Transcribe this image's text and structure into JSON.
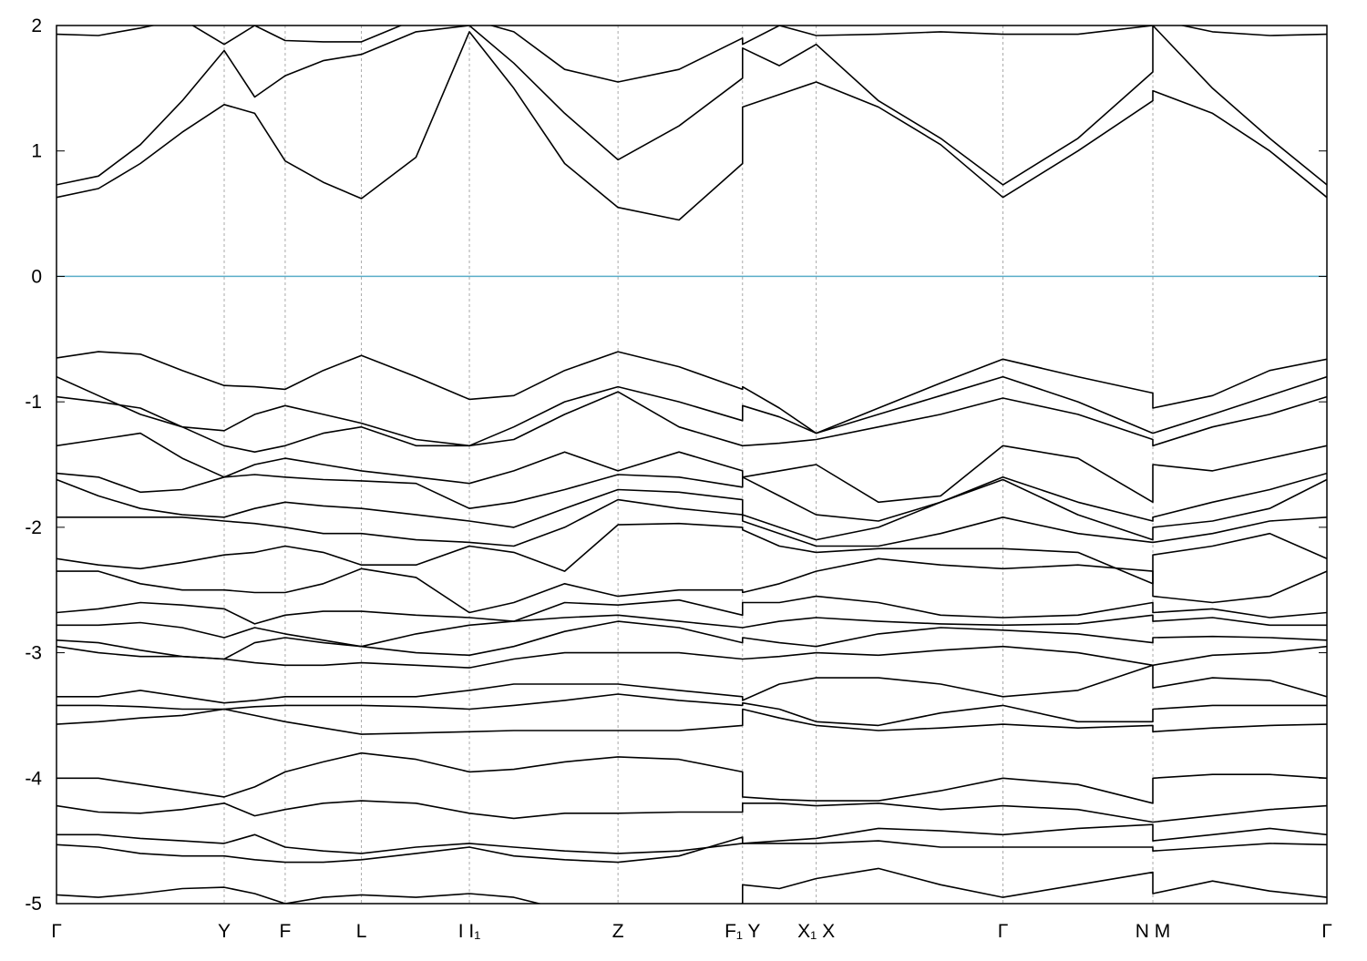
{
  "chart_data": {
    "type": "line",
    "xlim": [
      0,
      1
    ],
    "ylim": [
      -5,
      2
    ],
    "yticks": [
      -5,
      -4,
      -3,
      -2,
      -1,
      0,
      1,
      2
    ],
    "xticks": [
      {
        "value": 0,
        "label": "Γ"
      },
      {
        "value": 0.132,
        "label": "Y"
      },
      {
        "value": 0.18,
        "label": "F"
      },
      {
        "value": 0.24,
        "label": "L"
      },
      {
        "value": 0.325,
        "label": "I I₁"
      },
      {
        "value": 0.442,
        "label": "Z"
      },
      {
        "value": 0.54,
        "label": "F₁ Y"
      },
      {
        "value": 0.598,
        "label": "X₁ X"
      },
      {
        "value": 0.745,
        "label": "Γ"
      },
      {
        "value": 0.863,
        "label": "N M"
      },
      {
        "value": 1,
        "label": "Γ"
      }
    ],
    "grid": true,
    "color": "#000000",
    "fermi_level": 0,
    "fermi_color": "#5aadc8",
    "x": [
      0,
      0.033,
      0.066,
      0.099,
      0.132,
      0.156,
      0.18,
      0.21,
      0.24,
      0.283,
      0.325,
      0.36,
      0.4,
      0.442,
      0.49,
      0.54,
      0.54,
      0.569,
      0.598,
      0.647,
      0.696,
      0.745,
      0.804,
      0.863,
      0.863,
      0.91,
      0.955,
      1.0
    ],
    "series": [
      {
        "values": [
          0.63,
          0.7,
          0.9,
          1.15,
          1.37,
          1.3,
          0.92,
          0.75,
          0.62,
          0.95,
          1.95,
          1.5,
          0.9,
          0.55,
          0.45,
          0.9,
          1.35,
          1.45,
          1.55,
          1.35,
          1.05,
          0.63,
          1.0,
          1.4,
          1.48,
          1.3,
          1.0,
          0.63
        ]
      },
      {
        "values": [
          0.73,
          0.8,
          1.05,
          1.4,
          1.8,
          1.43,
          1.6,
          1.72,
          1.77,
          1.95,
          2.0,
          1.7,
          1.3,
          0.93,
          1.2,
          1.58,
          1.82,
          1.68,
          1.85,
          1.4,
          1.1,
          0.73,
          1.1,
          1.63,
          2.0,
          1.5,
          1.1,
          0.73
        ]
      },
      {
        "values": [
          1.93,
          1.92,
          1.98,
          2.05,
          1.85,
          2.0,
          1.88,
          1.87,
          1.87,
          2.05,
          2.05,
          1.95,
          1.65,
          1.55,
          1.65,
          1.9,
          1.85,
          2.0,
          1.92,
          1.93,
          1.95,
          1.93,
          1.93,
          2.0,
          2.05,
          1.95,
          1.92,
          1.93
        ]
      },
      {
        "values": [
          -0.65,
          -0.6,
          -0.62,
          -0.75,
          -0.87,
          -0.88,
          -0.9,
          -0.75,
          -0.63,
          -0.8,
          -0.98,
          -0.95,
          -0.75,
          -0.6,
          -0.72,
          -0.9,
          -0.88,
          -1.05,
          -1.25,
          -1.05,
          -0.85,
          -0.66,
          -0.8,
          -0.93,
          -1.05,
          -0.95,
          -0.75,
          -0.66
        ]
      },
      {
        "values": [
          -0.8,
          -0.95,
          -1.1,
          -1.2,
          -1.23,
          -1.1,
          -1.03,
          -1.1,
          -1.17,
          -1.3,
          -1.35,
          -1.2,
          -1.0,
          -0.88,
          -1.0,
          -1.15,
          -1.03,
          -1.12,
          -1.25,
          -1.1,
          -0.95,
          -0.8,
          -1.0,
          -1.25,
          -1.25,
          -1.1,
          -0.95,
          -0.8
        ]
      },
      {
        "values": [
          -0.96,
          -1.0,
          -1.05,
          -1.2,
          -1.35,
          -1.4,
          -1.35,
          -1.25,
          -1.2,
          -1.35,
          -1.35,
          -1.3,
          -1.1,
          -0.92,
          -1.2,
          -1.35,
          -1.35,
          -1.33,
          -1.3,
          -1.2,
          -1.1,
          -0.97,
          -1.1,
          -1.3,
          -1.35,
          -1.2,
          -1.1,
          -0.96
        ]
      },
      {
        "values": [
          -1.35,
          -1.3,
          -1.25,
          -1.45,
          -1.6,
          -1.5,
          -1.45,
          -1.5,
          -1.55,
          -1.6,
          -1.65,
          -1.55,
          -1.4,
          -1.55,
          -1.4,
          -1.55,
          -1.6,
          -1.55,
          -1.5,
          -1.8,
          -1.75,
          -1.35,
          -1.45,
          -1.8,
          -1.5,
          -1.55,
          -1.45,
          -1.35
        ]
      },
      {
        "values": [
          -1.57,
          -1.6,
          -1.72,
          -1.7,
          -1.6,
          -1.58,
          -1.6,
          -1.62,
          -1.63,
          -1.65,
          -1.85,
          -1.8,
          -1.7,
          -1.58,
          -1.6,
          -1.68,
          -1.6,
          -1.75,
          -1.9,
          -1.95,
          -1.8,
          -1.6,
          -1.8,
          -1.95,
          -1.92,
          -1.8,
          -1.7,
          -1.57
        ]
      },
      {
        "values": [
          -1.62,
          -1.75,
          -1.85,
          -1.9,
          -1.92,
          -1.85,
          -1.8,
          -1.83,
          -1.85,
          -1.9,
          -1.95,
          -2.0,
          -1.85,
          -1.7,
          -1.72,
          -1.78,
          -1.9,
          -2.0,
          -2.1,
          -2.0,
          -1.8,
          -1.62,
          -1.9,
          -2.1,
          -2.0,
          -1.95,
          -1.85,
          -1.62
        ]
      },
      {
        "values": [
          -1.92,
          -1.92,
          -1.92,
          -1.92,
          -1.95,
          -1.97,
          -2.0,
          -2.05,
          -2.05,
          -2.1,
          -2.12,
          -2.15,
          -2.0,
          -1.78,
          -1.85,
          -1.9,
          -1.95,
          -2.05,
          -2.15,
          -2.15,
          -2.05,
          -1.92,
          -2.05,
          -2.12,
          -2.12,
          -2.05,
          -1.95,
          -1.92
        ]
      },
      {
        "values": [
          -2.25,
          -2.3,
          -2.33,
          -2.28,
          -2.22,
          -2.2,
          -2.15,
          -2.2,
          -2.3,
          -2.3,
          -2.15,
          -2.2,
          -2.35,
          -1.98,
          -1.97,
          -2.0,
          -2.02,
          -2.15,
          -2.2,
          -2.17,
          -2.17,
          -2.17,
          -2.2,
          -2.45,
          -2.22,
          -2.15,
          -2.05,
          -2.25
        ]
      },
      {
        "values": [
          -2.35,
          -2.35,
          -2.45,
          -2.5,
          -2.5,
          -2.52,
          -2.52,
          -2.45,
          -2.33,
          -2.4,
          -2.68,
          -2.6,
          -2.45,
          -2.55,
          -2.5,
          -2.5,
          -2.52,
          -2.45,
          -2.35,
          -2.25,
          -2.3,
          -2.33,
          -2.3,
          -2.35,
          -2.55,
          -2.6,
          -2.55,
          -2.35
        ]
      },
      {
        "values": [
          -2.68,
          -2.65,
          -2.6,
          -2.62,
          -2.65,
          -2.77,
          -2.7,
          -2.67,
          -2.67,
          -2.7,
          -2.72,
          -2.75,
          -2.6,
          -2.62,
          -2.58,
          -2.7,
          -2.6,
          -2.6,
          -2.55,
          -2.6,
          -2.7,
          -2.72,
          -2.7,
          -2.6,
          -2.68,
          -2.65,
          -2.72,
          -2.68
        ]
      },
      {
        "values": [
          -2.78,
          -2.78,
          -2.76,
          -2.8,
          -2.88,
          -2.8,
          -2.85,
          -2.9,
          -2.95,
          -2.85,
          -2.78,
          -2.75,
          -2.72,
          -2.7,
          -2.75,
          -2.8,
          -2.8,
          -2.75,
          -2.72,
          -2.75,
          -2.77,
          -2.78,
          -2.77,
          -2.7,
          -2.75,
          -2.72,
          -2.78,
          -2.78
        ]
      },
      {
        "values": [
          -2.9,
          -2.92,
          -2.98,
          -3.03,
          -3.05,
          -2.92,
          -2.88,
          -2.92,
          -2.95,
          -3.0,
          -3.02,
          -2.95,
          -2.83,
          -2.75,
          -2.8,
          -2.92,
          -2.88,
          -2.92,
          -2.95,
          -2.85,
          -2.8,
          -2.82,
          -2.85,
          -2.92,
          -2.88,
          -2.87,
          -2.88,
          -2.9
        ]
      },
      {
        "values": [
          -2.95,
          -3.0,
          -3.03,
          -3.03,
          -3.05,
          -3.08,
          -3.1,
          -3.1,
          -3.08,
          -3.1,
          -3.12,
          -3.05,
          -3.0,
          -3.0,
          -3.0,
          -3.05,
          -3.05,
          -3.03,
          -3.0,
          -3.02,
          -2.98,
          -2.95,
          -3.0,
          -3.1,
          -3.1,
          -3.02,
          -3.0,
          -2.95
        ]
      },
      {
        "values": [
          -3.35,
          -3.35,
          -3.3,
          -3.35,
          -3.4,
          -3.38,
          -3.35,
          -3.35,
          -3.35,
          -3.35,
          -3.3,
          -3.25,
          -3.25,
          -3.25,
          -3.3,
          -3.35,
          -3.38,
          -3.25,
          -3.2,
          -3.2,
          -3.25,
          -3.35,
          -3.3,
          -3.1,
          -3.28,
          -3.2,
          -3.22,
          -3.35
        ]
      },
      {
        "values": [
          -3.42,
          -3.42,
          -3.43,
          -3.45,
          -3.45,
          -3.43,
          -3.42,
          -3.42,
          -3.42,
          -3.43,
          -3.45,
          -3.42,
          -3.38,
          -3.33,
          -3.38,
          -3.42,
          -3.4,
          -3.45,
          -3.55,
          -3.58,
          -3.48,
          -3.42,
          -3.55,
          -3.55,
          -3.45,
          -3.42,
          -3.42,
          -3.42
        ]
      },
      {
        "values": [
          -3.57,
          -3.55,
          -3.52,
          -3.5,
          -3.45,
          -3.5,
          -3.55,
          -3.6,
          -3.65,
          -3.64,
          -3.63,
          -3.62,
          -3.62,
          -3.62,
          -3.62,
          -3.58,
          -3.45,
          -3.52,
          -3.58,
          -3.62,
          -3.6,
          -3.57,
          -3.6,
          -3.58,
          -3.63,
          -3.6,
          -3.58,
          -3.57
        ]
      },
      {
        "values": [
          -4.0,
          -4.0,
          -4.05,
          -4.1,
          -4.15,
          -4.07,
          -3.95,
          -3.87,
          -3.8,
          -3.85,
          -3.95,
          -3.93,
          -3.87,
          -3.83,
          -3.85,
          -3.95,
          -4.15,
          -4.17,
          -4.18,
          -4.18,
          -4.1,
          -4.0,
          -4.05,
          -4.2,
          -4.0,
          -3.97,
          -3.97,
          -4.0
        ]
      },
      {
        "values": [
          -4.22,
          -4.27,
          -4.28,
          -4.25,
          -4.2,
          -4.3,
          -4.25,
          -4.2,
          -4.18,
          -4.2,
          -4.28,
          -4.32,
          -4.28,
          -4.28,
          -4.27,
          -4.27,
          -4.2,
          -4.2,
          -4.22,
          -4.2,
          -4.25,
          -4.22,
          -4.25,
          -4.35,
          -4.35,
          -4.3,
          -4.25,
          -4.22
        ]
      },
      {
        "values": [
          -4.45,
          -4.45,
          -4.48,
          -4.5,
          -4.52,
          -4.45,
          -4.55,
          -4.58,
          -4.6,
          -4.55,
          -4.52,
          -4.55,
          -4.58,
          -4.6,
          -4.58,
          -4.52,
          -4.52,
          -4.5,
          -4.48,
          -4.4,
          -4.42,
          -4.45,
          -4.4,
          -4.37,
          -4.5,
          -4.45,
          -4.4,
          -4.45
        ]
      },
      {
        "values": [
          -4.53,
          -4.55,
          -4.6,
          -4.62,
          -4.62,
          -4.65,
          -4.67,
          -4.67,
          -4.65,
          -4.6,
          -4.55,
          -4.62,
          -4.65,
          -4.67,
          -4.62,
          -4.47,
          -4.52,
          -4.52,
          -4.52,
          -4.5,
          -4.55,
          -4.55,
          -4.55,
          -4.55,
          -4.58,
          -4.55,
          -4.52,
          -4.53
        ]
      },
      {
        "values": [
          -4.93,
          -4.95,
          -4.92,
          -4.88,
          -4.87,
          -4.92,
          -5.0,
          -4.95,
          -4.93,
          -4.95,
          -4.92,
          -4.95,
          -5.05,
          -5.05,
          -5.05,
          -5.0,
          -4.85,
          -4.88,
          -4.8,
          -4.72,
          -4.85,
          -4.95,
          -4.85,
          -4.75,
          -4.92,
          -4.82,
          -4.9,
          -4.95
        ]
      }
    ]
  }
}
